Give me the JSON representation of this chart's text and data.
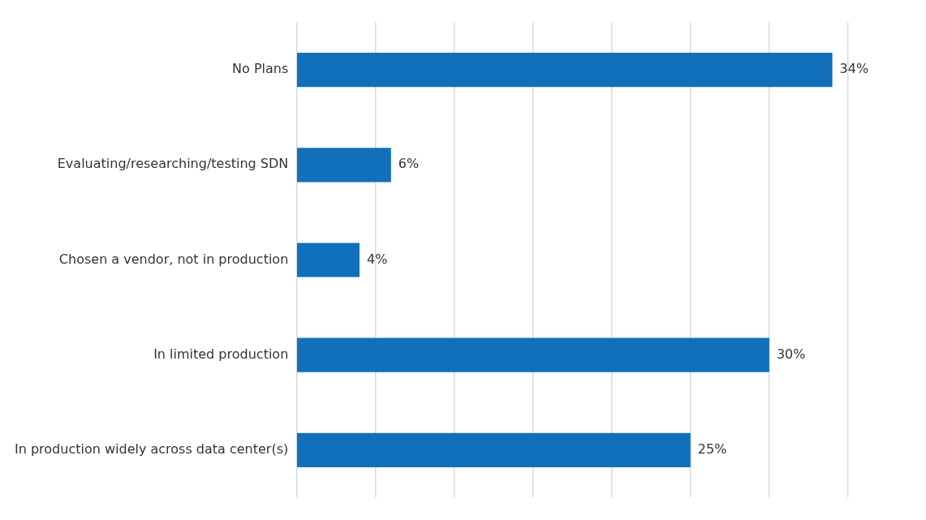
{
  "chart_data": {
    "type": "bar",
    "orientation": "horizontal",
    "categories": [
      "No Plans",
      "Evaluating/researching/testing SDN",
      "Chosen a vendor, not in production",
      "In limited production",
      "In production widely across data center(s)"
    ],
    "values": [
      34,
      6,
      4,
      30,
      25
    ],
    "color": "#1170bb",
    "value_labels": [
      "34%",
      "6%",
      "4%",
      "30%",
      "25%"
    ],
    "xticks": [
      {
        "value": 0,
        "label": null
      },
      {
        "value": 5,
        "label": null
      },
      {
        "value": 10,
        "label": null
      },
      {
        "value": 15,
        "label": null
      },
      {
        "value": 20,
        "label": null
      },
      {
        "value": 25,
        "label": null
      },
      {
        "value": 30,
        "label": null
      },
      {
        "value": 35,
        "label": null
      }
    ],
    "grid": "x",
    "tick_labels": "y",
    "legend": false
  }
}
